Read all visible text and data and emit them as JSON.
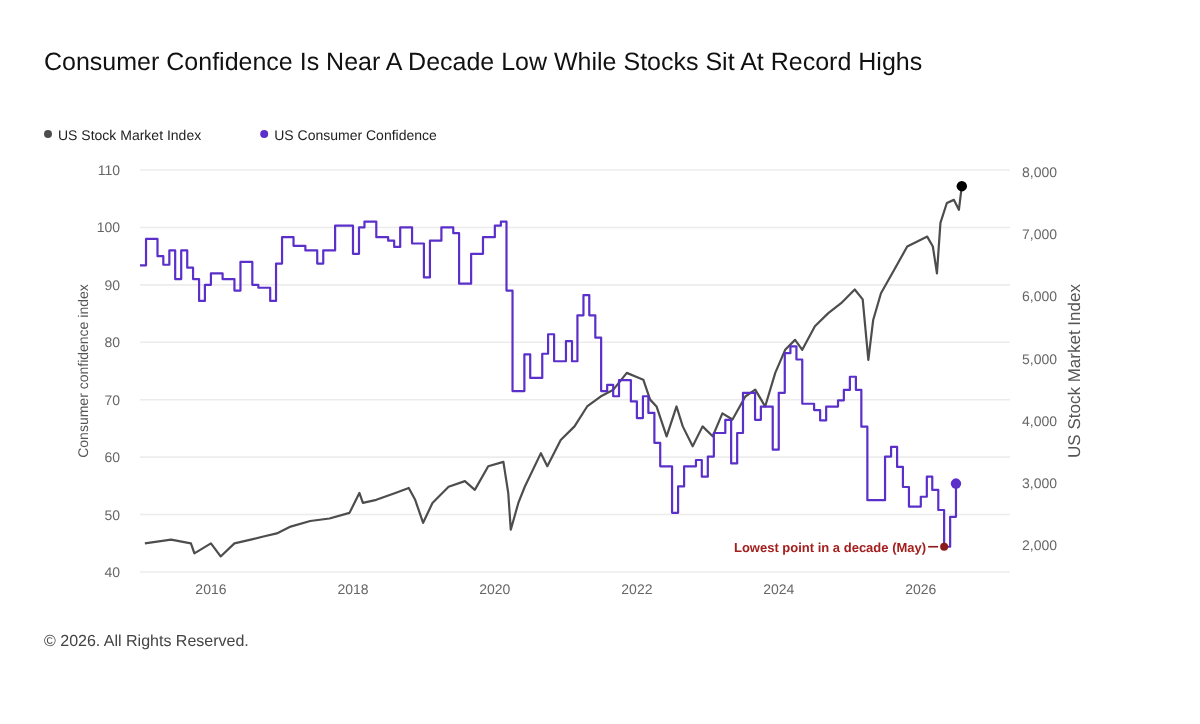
{
  "chart_data": {
    "type": "line",
    "title": "Consumer Confidence Is Near A Decade Low While Stocks Sit At Record Highs",
    "ylabel": "Consumer confidence index",
    "y2label": "US Stock Market Index",
    "legend": "top left",
    "grid": "y",
    "xlim": [
      "2015-01-01",
      "2027-04-05"
    ],
    "xticks": [
      {
        "value": "2016-01-01",
        "label": "2016"
      },
      {
        "value": "2018-01-01",
        "label": "2018"
      },
      {
        "value": "2020-01-01",
        "label": "2020"
      },
      {
        "value": "2022-01-01",
        "label": "2022"
      },
      {
        "value": "2024-01-01",
        "label": "2024"
      },
      {
        "value": "2026-01-01",
        "label": "2026"
      }
    ],
    "ylim": [
      40,
      110
    ],
    "yticks": [
      40,
      50,
      60,
      70,
      80,
      90,
      100,
      110
    ],
    "y2lim": [
      1570,
      8030
    ],
    "y2ticks": [
      {
        "value": 2000,
        "label": "2,000"
      },
      {
        "value": 3000,
        "label": "3,000"
      },
      {
        "value": 4000,
        "label": "4,000"
      },
      {
        "value": 5000,
        "label": "5,000"
      },
      {
        "value": 6000,
        "label": "6,000"
      },
      {
        "value": 7000,
        "label": "7,000"
      },
      {
        "value": 8000,
        "label": "8,000"
      }
    ],
    "series": [
      {
        "name": "US Stock Market Index",
        "color": "#4d4d4d",
        "axis": "y2",
        "x": [
          "2015-01-26",
          "2015-06-10",
          "2015-09-20",
          "2015-10-08",
          "2016-01-01",
          "2016-02-20",
          "2016-05-01",
          "2016-07-24",
          "2016-09-27",
          "2016-12-05",
          "2017-02-14",
          "2017-05-26",
          "2017-09-02",
          "2017-12-14",
          "2018-02-03",
          "2018-02-21",
          "2018-05-01",
          "2018-08-07",
          "2018-10-15",
          "2018-11-17",
          "2018-12-28",
          "2019-02-14",
          "2019-05-08",
          "2019-07-31",
          "2019-09-20",
          "2019-11-28",
          "2020-02-14",
          "2020-03-10",
          "2020-03-23",
          "2020-05-01",
          "2020-06-03",
          "2020-08-25",
          "2020-09-27",
          "2020-12-05",
          "2021-02-14",
          "2021-04-20",
          "2021-06-28",
          "2021-09-02",
          "2021-11-10",
          "2022-01-03",
          "2022-02-03",
          "2022-03-10",
          "2022-04-12",
          "2022-06-03",
          "2022-07-24",
          "2022-08-25",
          "2022-10-15",
          "2022-12-05",
          "2023-01-26",
          "2023-03-17",
          "2023-05-08",
          "2023-07-13",
          "2023-09-02",
          "2023-10-23",
          "2023-12-14",
          "2024-02-03",
          "2024-03-25",
          "2024-05-01",
          "2024-07-05",
          "2024-09-12",
          "2024-11-17",
          "2025-01-26",
          "2025-03-08",
          "2025-04-06",
          "2025-05-01",
          "2025-06-10",
          "2025-08-18",
          "2025-10-23",
          "2026-01-01",
          "2026-02-03",
          "2026-03-04",
          "2026-03-25",
          "2026-04-12",
          "2026-05-15",
          "2026-06-20",
          "2026-07-16",
          "2026-07-31"
        ],
        "values": [
          2030,
          2090,
          2030,
          1870,
          2030,
          1820,
          2030,
          2090,
          2140,
          2190,
          2300,
          2390,
          2430,
          2520,
          2840,
          2680,
          2730,
          2840,
          2920,
          2730,
          2360,
          2680,
          2940,
          3030,
          2890,
          3270,
          3340,
          2840,
          2250,
          2680,
          2940,
          3480,
          3270,
          3690,
          3910,
          4230,
          4390,
          4500,
          4770,
          4700,
          4660,
          4340,
          4230,
          3750,
          4230,
          3910,
          3590,
          3910,
          3750,
          4120,
          4020,
          4390,
          4500,
          4230,
          4770,
          5140,
          5300,
          5140,
          5520,
          5730,
          5890,
          6110,
          5950,
          4980,
          5620,
          6050,
          6430,
          6800,
          6910,
          6960,
          6800,
          6370,
          7180,
          7500,
          7550,
          7390,
          7770
        ]
      },
      {
        "name": "US Consumer Confidence",
        "color": "#5b2fc9",
        "type": "step",
        "x": [
          "2015-01",
          "2015-02",
          "2015-04",
          "2015-05",
          "2015-06",
          "2015-07",
          "2015-08",
          "2015-09",
          "2015-10",
          "2015-11",
          "2015-12",
          "2016-01",
          "2016-03",
          "2016-05",
          "2016-06",
          "2016-08",
          "2016-09",
          "2016-11",
          "2016-12",
          "2017-01",
          "2017-03",
          "2017-05",
          "2017-07",
          "2017-08",
          "2017-10",
          "2018-01",
          "2018-02",
          "2018-03",
          "2018-05",
          "2018-07",
          "2018-08",
          "2018-09",
          "2018-11",
          "2019-01",
          "2019-02",
          "2019-04",
          "2019-06",
          "2019-07",
          "2019-09",
          "2019-11",
          "2020-01",
          "2020-02",
          "2020-03",
          "2020-04",
          "2020-06",
          "2020-07",
          "2020-09",
          "2020-10",
          "2020-11",
          "2021-01",
          "2021-02",
          "2021-03",
          "2021-04",
          "2021-05",
          "2021-06",
          "2021-07",
          "2021-08",
          "2021-09",
          "2021-10",
          "2021-12",
          "2022-01",
          "2022-02",
          "2022-03",
          "2022-04",
          "2022-05",
          "2022-07",
          "2022-08",
          "2022-09",
          "2022-11",
          "2022-12",
          "2023-01",
          "2023-02",
          "2023-04",
          "2023-05",
          "2023-06",
          "2023-07",
          "2023-09",
          "2023-10",
          "2023-12",
          "2024-01",
          "2024-02",
          "2024-03",
          "2024-04",
          "2024-05",
          "2024-07",
          "2024-08",
          "2024-09",
          "2024-11",
          "2024-12",
          "2025-01",
          "2025-02",
          "2025-03",
          "2025-04",
          "2025-07",
          "2025-08",
          "2025-09",
          "2025-10",
          "2025-11",
          "2026-01",
          "2026-02",
          "2026-03",
          "2026-04",
          "2026-05",
          "2026-06",
          "2026-07"
        ],
        "values": [
          93.4,
          98,
          95,
          93.5,
          96,
          91,
          96,
          93,
          91,
          87.2,
          90,
          92,
          91,
          89,
          94,
          90,
          89.5,
          87.2,
          93.7,
          98.3,
          96.8,
          96,
          93.7,
          96,
          100.3,
          95.4,
          100,
          101,
          98.3,
          97.7,
          96.6,
          100,
          97.2,
          91.3,
          97.7,
          100,
          99,
          90.2,
          95.4,
          98.3,
          100.3,
          101,
          89,
          71.5,
          77.9,
          73.8,
          78,
          81.4,
          76.7,
          80.2,
          76.7,
          84.7,
          88.2,
          84.7,
          80.8,
          71.5,
          72.6,
          70.6,
          73.4,
          69.7,
          66.8,
          70.6,
          67.7,
          62.5,
          58.4,
          50.3,
          54.9,
          58.4,
          59.5,
          56.6,
          60.1,
          64.2,
          66.5,
          58.9,
          64.2,
          71.2,
          66.5,
          68.8,
          61.3,
          71.2,
          78.1,
          79.3,
          77,
          69.3,
          68.2,
          66.4,
          68.8,
          69.9,
          71.7,
          74,
          71.7,
          65.3,
          52.5,
          60.1,
          61.8,
          58.3,
          54.8,
          51.4,
          53.1,
          56.6,
          54.3,
          50.8,
          44.4,
          49.6,
          55.4
        ]
      }
    ],
    "annotations": [
      {
        "text": "Lowest point in a decade (May)",
        "x": "2026-05",
        "y": 44.4
      },
      "© 2026. All Rights Reserved."
    ]
  }
}
